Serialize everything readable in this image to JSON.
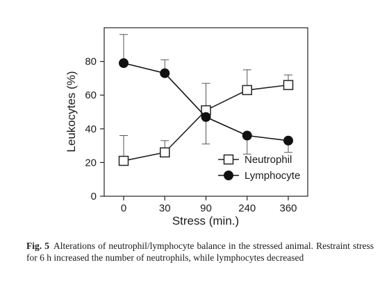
{
  "chart_data": {
    "type": "line",
    "xlabel": "Stress (min.)",
    "ylabel": "Leukocytes (%)",
    "categories": [
      "0",
      "30",
      "90",
      "240",
      "360"
    ],
    "ylim": [
      0,
      100
    ],
    "yticks": [
      "0",
      "20",
      "40",
      "60",
      "80"
    ],
    "legend_position": "lower-right",
    "grid": false,
    "series": [
      {
        "name": "Neutrophil",
        "marker": "open-square",
        "color": "#222222",
        "values": [
          21,
          26,
          51,
          63,
          66
        ],
        "error_up": [
          15,
          7,
          16,
          12,
          6
        ],
        "error_down": [
          0,
          0,
          20,
          0,
          0
        ]
      },
      {
        "name": "Lymphocyte",
        "marker": "filled-circle",
        "color": "#111111",
        "values": [
          79,
          73,
          47,
          36,
          33
        ],
        "error_up": [
          17,
          8,
          0,
          0,
          0
        ],
        "error_down": [
          0,
          0,
          0,
          11,
          7
        ]
      }
    ]
  },
  "caption": {
    "label": "Fig. 5",
    "text": "Alterations of neutrophil/lymphocyte balance in the stressed animal. Restraint stress for 6 h increased the number of neutrophils, while lymphocytes decreased"
  }
}
